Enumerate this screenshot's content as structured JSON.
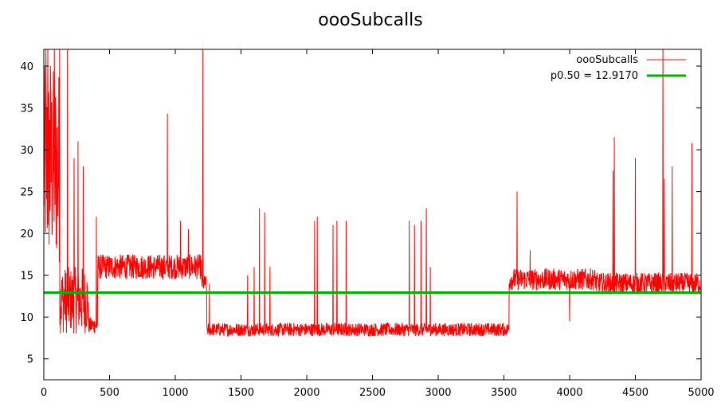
{
  "chart_data": {
    "type": "line",
    "title": "oooSubcalls",
    "xlabel": "",
    "ylabel": "",
    "xlim": [
      0,
      5000
    ],
    "ylim": [
      2.5,
      42
    ],
    "x_ticks": [
      0,
      500,
      1000,
      1500,
      2000,
      2500,
      3000,
      3500,
      4000,
      4500,
      5000
    ],
    "y_ticks": [
      5,
      10,
      15,
      20,
      25,
      30,
      35,
      40
    ],
    "grid": false,
    "legend_position": "top-right",
    "colors": {
      "series": "#ff0000",
      "median": "#00b000"
    },
    "series": [
      {
        "name": "oooSubcalls",
        "segments": [
          {
            "x": [
              0,
              120
            ],
            "base": 28,
            "noise": 12
          },
          {
            "x": [
              120,
              340
            ],
            "base": 12,
            "noise": 4
          },
          {
            "x": [
              340,
              410
            ],
            "base": 9,
            "noise": 1
          },
          {
            "x": [
              410,
              1200
            ],
            "base": 16,
            "noise": 1.5
          },
          {
            "x": [
              1200,
              1240
            ],
            "base": 14,
            "noise": 1
          },
          {
            "x": [
              1240,
              3540
            ],
            "base": 8.5,
            "noise": 0.8
          },
          {
            "x": [
              3540,
              4200
            ],
            "base": 14.5,
            "noise": 1.3
          },
          {
            "x": [
              4200,
              5000
            ],
            "base": 14,
            "noise": 1.3
          }
        ],
        "spikes": [
          [
            15,
            42
          ],
          [
            30,
            42
          ],
          [
            50,
            40
          ],
          [
            80,
            42
          ],
          [
            120,
            42
          ],
          [
            180,
            42
          ],
          [
            230,
            29
          ],
          [
            260,
            31
          ],
          [
            300,
            28
          ],
          [
            400,
            22
          ],
          [
            940,
            34.3
          ],
          [
            1040,
            21.5
          ],
          [
            1100,
            20.5
          ],
          [
            1210,
            42
          ],
          [
            1260,
            14
          ],
          [
            1550,
            15
          ],
          [
            1600,
            16
          ],
          [
            1640,
            23
          ],
          [
            1680,
            22.5
          ],
          [
            1720,
            16
          ],
          [
            2060,
            21.5
          ],
          [
            2080,
            22
          ],
          [
            2200,
            21
          ],
          [
            2230,
            21.5
          ],
          [
            2300,
            21.5
          ],
          [
            2780,
            21.5
          ],
          [
            2820,
            21
          ],
          [
            2870,
            21.5
          ],
          [
            2910,
            23
          ],
          [
            2940,
            16
          ],
          [
            3600,
            25
          ],
          [
            3700,
            18
          ],
          [
            4000,
            9.5
          ],
          [
            4330,
            27.5
          ],
          [
            4340,
            31.5
          ],
          [
            4500,
            29
          ],
          [
            4710,
            42
          ],
          [
            4720,
            26.5
          ],
          [
            4780,
            28
          ],
          [
            4930,
            30.8
          ]
        ]
      },
      {
        "name": "p0.50 = 12.9170",
        "y": 12.917
      }
    ]
  }
}
